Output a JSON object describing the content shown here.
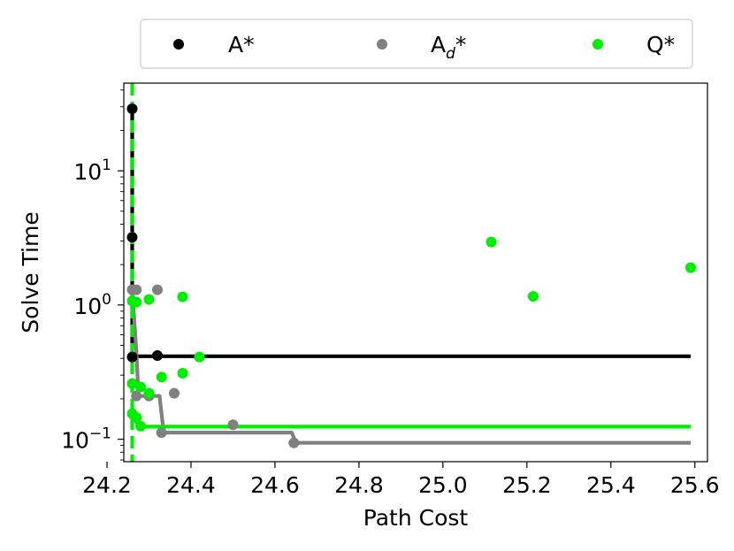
{
  "chart_data": {
    "type": "scatter",
    "xlabel": "Path Cost",
    "ylabel": "Solve Time",
    "xlim": [
      24.24,
      25.63
    ],
    "ylim": [
      0.068,
      45
    ],
    "y_scale": "log",
    "x_ticks": [
      24.2,
      24.4,
      24.6,
      24.8,
      25.0,
      25.2,
      25.4,
      25.6
    ],
    "x_tick_labels": [
      "24.2",
      "24.4",
      "24.6",
      "24.8",
      "25.0",
      "25.2",
      "25.4",
      "25.6"
    ],
    "y_ticks": [
      0.1,
      1,
      10
    ],
    "y_tick_labels": [
      {
        "base": "10",
        "exp": "−1"
      },
      {
        "base": "10",
        "exp": "0"
      },
      {
        "base": "10",
        "exp": "1"
      }
    ],
    "grid": false,
    "legend_placement": "top, outside plot, horizontal",
    "vertical_reference_line": {
      "x": 24.26,
      "color": "#00ee00",
      "style": "dashed"
    },
    "series": [
      {
        "name": "A*",
        "legend_label": "A*",
        "color": "#000000",
        "points": [
          [
            24.26,
            29
          ],
          [
            24.26,
            3.2
          ],
          [
            24.26,
            0.41
          ],
          [
            24.32,
            0.42
          ]
        ],
        "frontier": [
          [
            24.26,
            29
          ],
          [
            24.26,
            0.415
          ],
          [
            25.59,
            0.415
          ]
        ]
      },
      {
        "name": "Ad*",
        "legend_label": {
          "base": "A",
          "sub": "d",
          "suffix": "*"
        },
        "color": "#808080",
        "points": [
          [
            24.26,
            1.3
          ],
          [
            24.27,
            1.3
          ],
          [
            24.32,
            1.3
          ],
          [
            24.27,
            0.21
          ],
          [
            24.3,
            0.21
          ],
          [
            24.36,
            0.22
          ],
          [
            24.33,
            0.112
          ],
          [
            24.5,
            0.128
          ],
          [
            24.645,
            0.094
          ]
        ],
        "frontier": [
          [
            24.26,
            1.3
          ],
          [
            24.27,
            0.45
          ],
          [
            24.275,
            0.21
          ],
          [
            24.325,
            0.21
          ],
          [
            24.335,
            0.112
          ],
          [
            24.64,
            0.112
          ],
          [
            24.65,
            0.094
          ],
          [
            25.59,
            0.094
          ]
        ]
      },
      {
        "name": "Q*",
        "legend_label": "Q*",
        "color": "#00ee00",
        "points": [
          [
            24.26,
            1.07
          ],
          [
            24.27,
            1.05
          ],
          [
            24.3,
            1.1
          ],
          [
            24.38,
            1.15
          ],
          [
            24.42,
            0.41
          ],
          [
            24.26,
            0.26
          ],
          [
            24.28,
            0.245
          ],
          [
            24.3,
            0.22
          ],
          [
            24.33,
            0.29
          ],
          [
            24.38,
            0.31
          ],
          [
            24.26,
            0.155
          ],
          [
            24.27,
            0.145
          ],
          [
            24.28,
            0.125
          ],
          [
            25.115,
            2.95
          ],
          [
            25.215,
            1.16
          ],
          [
            25.59,
            1.9
          ]
        ],
        "frontier": [
          [
            24.26,
            0.16
          ],
          [
            24.275,
            0.124
          ],
          [
            25.59,
            0.124
          ]
        ]
      }
    ]
  }
}
